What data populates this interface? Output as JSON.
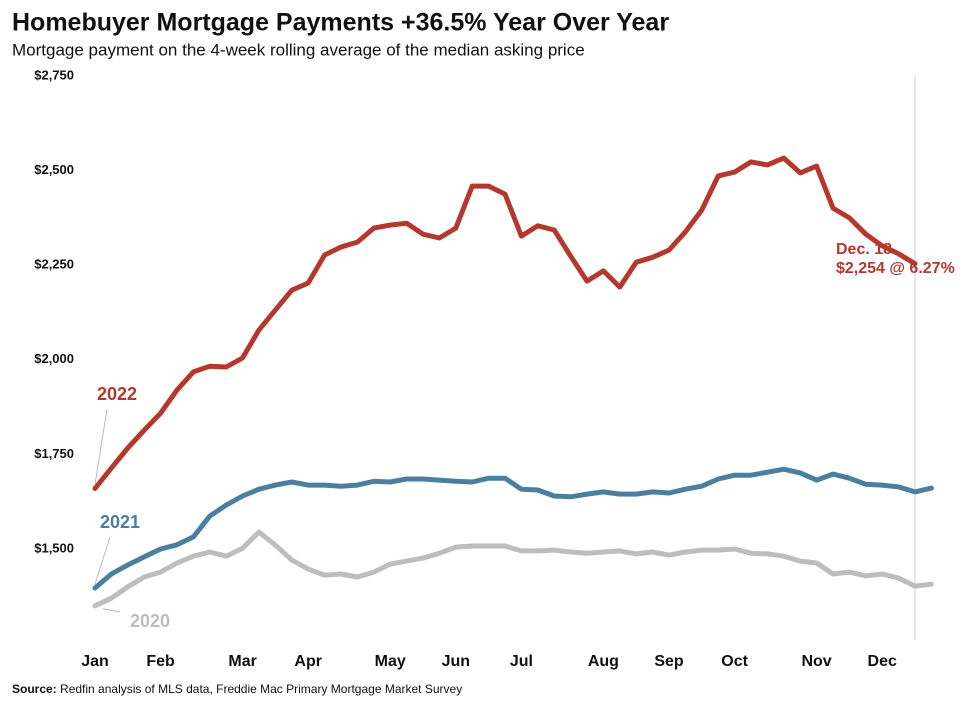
{
  "chart_data": {
    "type": "line",
    "title": "Homebuyer Mortgage Payments +36.5% Year Over Year",
    "subtitle": "Mortgage payment on the 4-week rolling average of the median asking price",
    "categories": [
      "Jan",
      null,
      null,
      null,
      "Feb",
      null,
      null,
      null,
      null,
      "Mar",
      null,
      null,
      null,
      "Apr",
      null,
      null,
      null,
      null,
      "May",
      null,
      null,
      null,
      "Jun",
      null,
      null,
      null,
      "Jul",
      null,
      null,
      null,
      null,
      "Aug",
      null,
      null,
      null,
      "Sep",
      null,
      null,
      null,
      "Oct",
      null,
      null,
      null,
      null,
      "Nov",
      null,
      null,
      null,
      "Dec",
      null,
      null,
      null
    ],
    "ylim": [
      1262,
      2750
    ],
    "yticks": [
      {
        "value": 1500,
        "label": "$1,500"
      },
      {
        "value": 1750,
        "label": "$1,750"
      },
      {
        "value": 2000,
        "label": "$2,000"
      },
      {
        "value": 2250,
        "label": "$2,250"
      },
      {
        "value": 2500,
        "label": "$2,500"
      },
      {
        "value": 2750,
        "label": "$2,750"
      }
    ],
    "grid": false,
    "series": [
      {
        "name": "2022",
        "color": "#b5382f",
        "values": [
          1660,
          1714,
          1767,
          1814,
          1859,
          1920,
          1968,
          1983,
          1981,
          2005,
          2079,
          2132,
          2184,
          2203,
          2277,
          2298,
          2311,
          2348,
          2356,
          2361,
          2332,
          2322,
          2348,
          2459,
          2459,
          2438,
          2327,
          2354,
          2343,
          2274,
          2208,
          2235,
          2192,
          2258,
          2271,
          2290,
          2338,
          2396,
          2486,
          2496,
          2523,
          2515,
          2533,
          2494,
          2512,
          2401,
          2375,
          2332,
          2301,
          2280,
          2254,
          null
        ]
      },
      {
        "name": "2021",
        "color": "#4a7fa0",
        "values": [
          1397,
          1434,
          1458,
          1479,
          1500,
          1511,
          1532,
          1587,
          1616,
          1640,
          1658,
          1669,
          1677,
          1669,
          1669,
          1666,
          1669,
          1679,
          1677,
          1685,
          1685,
          1682,
          1679,
          1677,
          1687,
          1687,
          1658,
          1656,
          1640,
          1638,
          1645,
          1651,
          1645,
          1645,
          1651,
          1648,
          1658,
          1666,
          1685,
          1695,
          1695,
          1703,
          1711,
          1701,
          1682,
          1698,
          1687,
          1671,
          1669,
          1664,
          1651,
          1661
        ]
      },
      {
        "name": "2020",
        "color": "#bdbdbd",
        "values": [
          1350,
          1370,
          1400,
          1426,
          1439,
          1463,
          1481,
          1492,
          1481,
          1502,
          1545,
          1510,
          1471,
          1447,
          1431,
          1434,
          1426,
          1439,
          1460,
          1468,
          1476,
          1489,
          1505,
          1508,
          1508,
          1508,
          1495,
          1495,
          1497,
          1492,
          1489,
          1492,
          1495,
          1487,
          1492,
          1484,
          1492,
          1497,
          1497,
          1500,
          1489,
          1487,
          1481,
          1468,
          1463,
          1434,
          1439,
          1429,
          1434,
          1423,
          1402,
          1407
        ]
      }
    ],
    "annotations": [
      "Dec. 18",
      "$2,254 @ 6.27%"
    ],
    "source": {
      "label": "Source:",
      "text": "Redfin analysis of MLS data, Freddie Mac Primary Mortgage Market Survey"
    }
  }
}
